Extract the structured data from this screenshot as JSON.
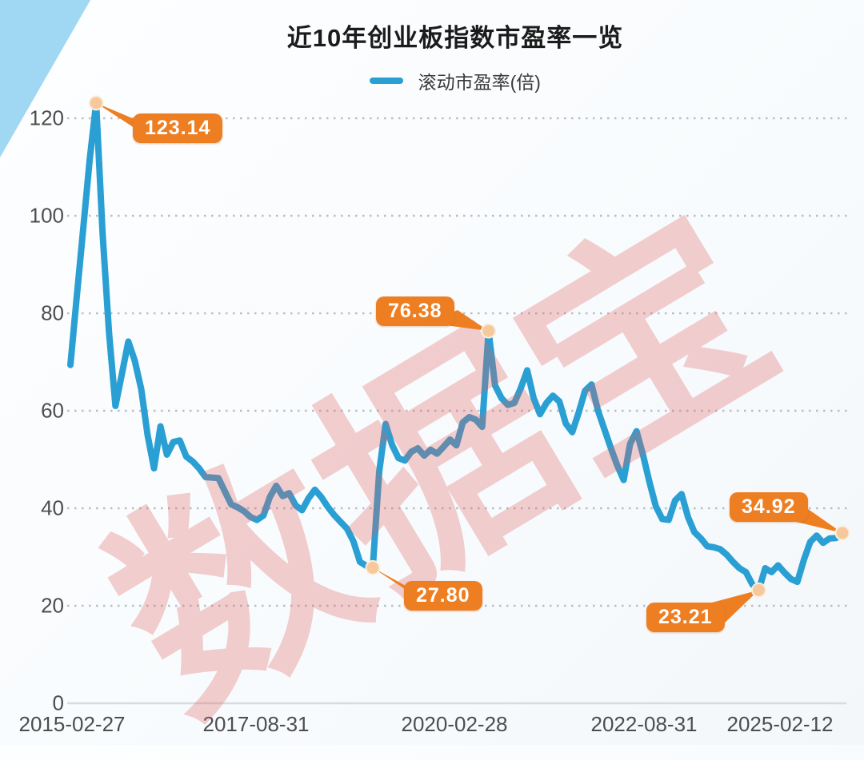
{
  "header": {
    "title": "近10年创业板指数市盈率一览",
    "legend_label": "滚动市盈率(倍)"
  },
  "watermark": "数据宝",
  "colors": {
    "line": "#2a9fd3",
    "annotation_bg": "#ee7e22",
    "annotation_text": "#ffffff",
    "marker_dot": "#f6c99c",
    "corner_triangle": "#a0d7f2",
    "grid_dots": "#a9aeb6",
    "zero_line": "#d8dce1",
    "axis_text": "#4d4d4d",
    "watermark_text": "rgba(222,96,96,0.30)"
  },
  "chart_data": {
    "type": "line",
    "title": "近10年创业板指数市盈率一览",
    "xlabel": "",
    "ylabel": "",
    "legend_position": "top",
    "grid": "horizontal dotted",
    "ylim": [
      0,
      130
    ],
    "y_ticks": [
      0,
      20,
      40,
      60,
      80,
      100,
      120
    ],
    "x_tick_labels": [
      "2015-02-27",
      "2017-08-31",
      "2020-02-28",
      "2022-08-31",
      "2025-02-12"
    ],
    "x_start": "2015-02",
    "x_end": "2025-02",
    "x_unit": "month",
    "series": [
      {
        "name": "滚动市盈率(倍)",
        "values": [
          69.4,
          83.5,
          97.5,
          111.5,
          123.14,
          96.5,
          76.0,
          61.0,
          67.5,
          74.2,
          70.3,
          64.5,
          55.0,
          48.2,
          56.8,
          51.0,
          53.6,
          53.9,
          50.6,
          49.6,
          48.2,
          46.4,
          46.3,
          46.2,
          43.5,
          40.8,
          40.2,
          39.4,
          38.2,
          37.6,
          38.5,
          42.3,
          44.6,
          42.5,
          43.1,
          40.6,
          39.6,
          42.0,
          43.8,
          42.3,
          40.3,
          38.6,
          37.2,
          35.8,
          33.2,
          29.0,
          28.2,
          27.8,
          47.5,
          57.3,
          53.0,
          50.3,
          49.8,
          51.6,
          52.3,
          50.8,
          52.0,
          51.2,
          52.6,
          54.1,
          52.9,
          57.6,
          58.7,
          58.2,
          56.7,
          76.38,
          65.2,
          62.6,
          61.2,
          61.6,
          64.6,
          68.3,
          62.6,
          59.3,
          61.6,
          63.1,
          61.9,
          57.4,
          55.6,
          59.6,
          64.1,
          65.4,
          60.1,
          56.2,
          52.4,
          48.8,
          45.8,
          53.2,
          55.8,
          51.0,
          45.4,
          40.4,
          37.8,
          37.6,
          41.6,
          42.9,
          38.2,
          35.1,
          33.8,
          32.2,
          32.0,
          31.6,
          30.5,
          29.0,
          27.7,
          26.9,
          24.4,
          23.21,
          27.7,
          26.9,
          28.3,
          26.8,
          25.5,
          24.9,
          29.4,
          33.1,
          34.4,
          32.9,
          33.8,
          33.9,
          34.92
        ]
      }
    ],
    "annotations": [
      {
        "label": "123.14",
        "value": 123.14,
        "index": 4
      },
      {
        "label": "27.80",
        "value": 27.8,
        "index": 47
      },
      {
        "label": "76.38",
        "value": 76.38,
        "index": 65
      },
      {
        "label": "23.21",
        "value": 23.21,
        "index": 107
      },
      {
        "label": "34.92",
        "value": 34.92,
        "index": 120
      }
    ]
  }
}
